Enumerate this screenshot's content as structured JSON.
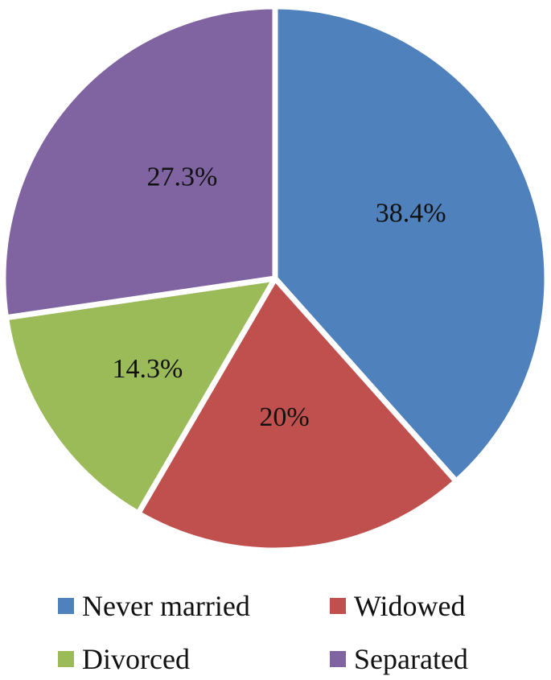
{
  "chart_data": {
    "type": "pie",
    "title": "",
    "categories": [
      "Never married",
      "Widowed",
      "Divorced",
      "Separated"
    ],
    "values": [
      38.4,
      20,
      14.3,
      27.3
    ],
    "value_labels": [
      "38.4%",
      "20%",
      "14.3%",
      "27.3%"
    ],
    "colors": [
      "#4F81BD",
      "#C0504D",
      "#9BBB59",
      "#8064A2"
    ],
    "start_angle": "12 o'clock",
    "direction": "clockwise",
    "legend_position": "bottom"
  }
}
